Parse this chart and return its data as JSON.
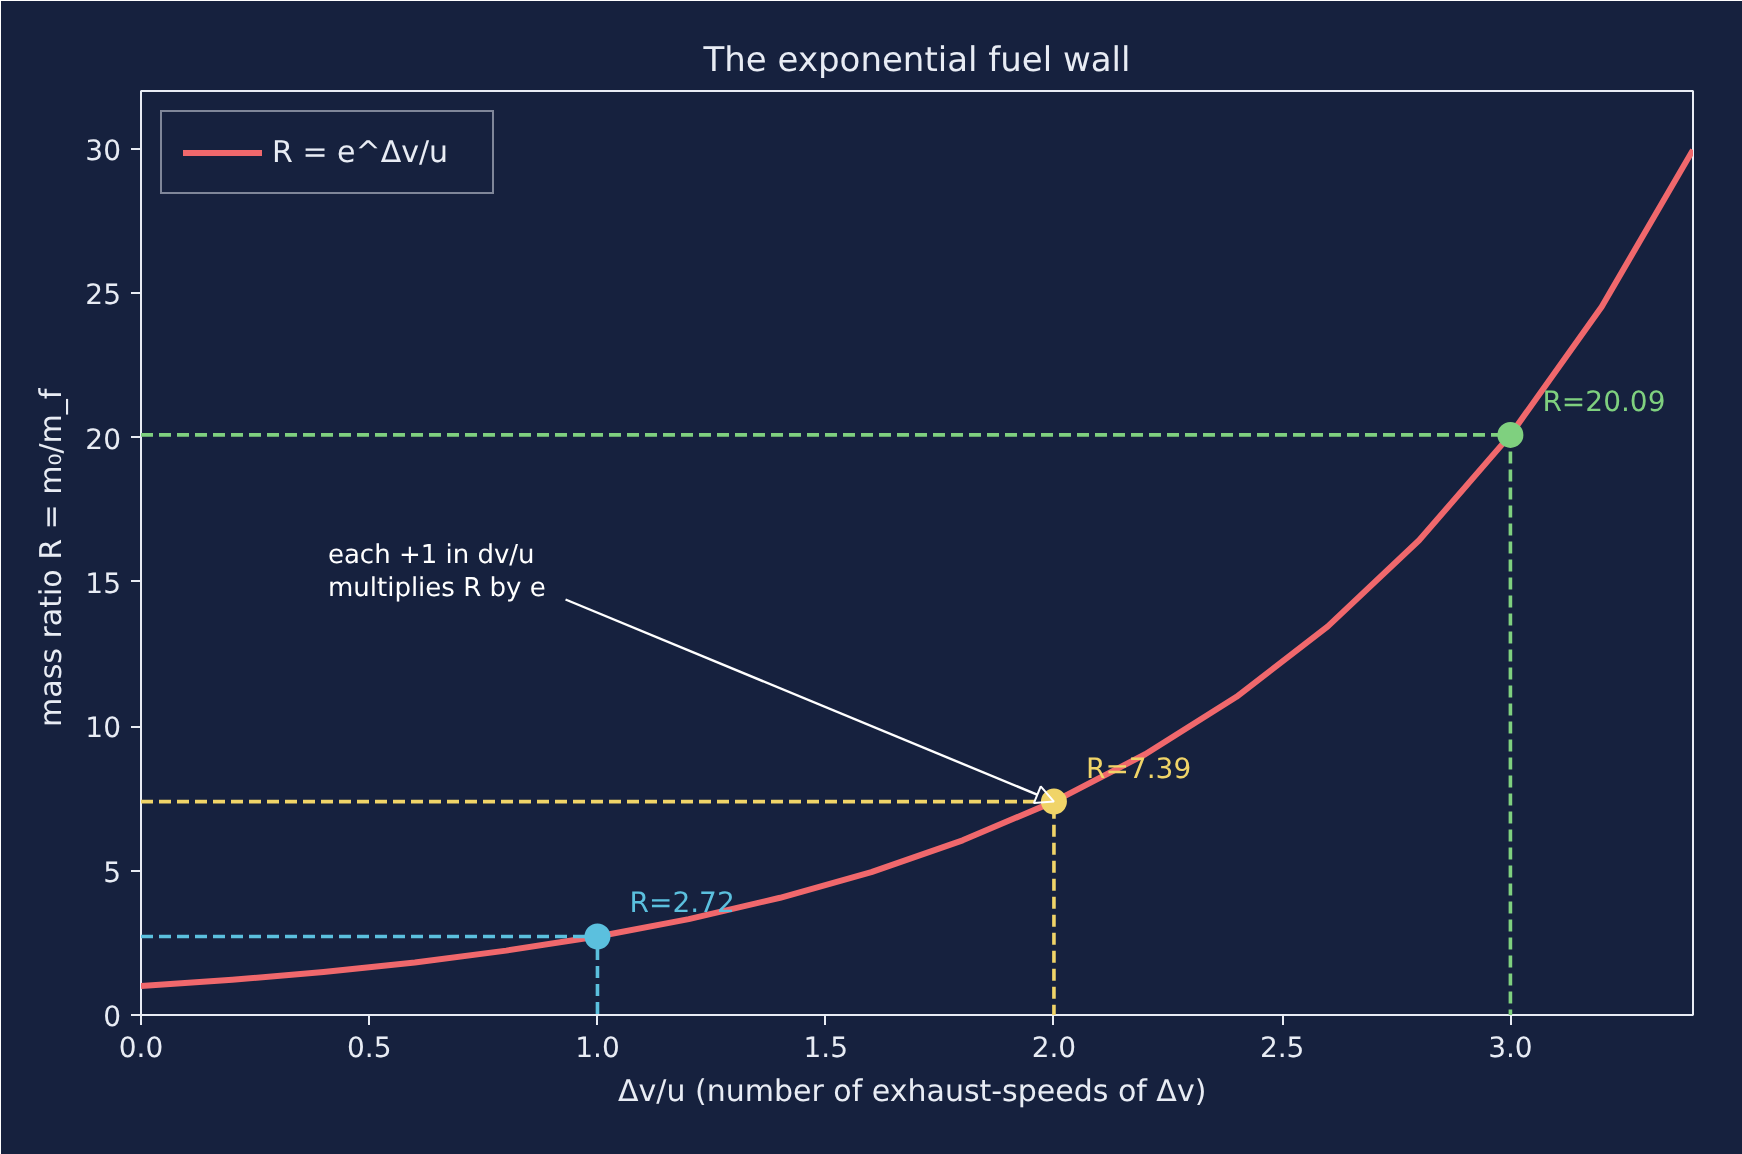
{
  "chart_data": {
    "type": "line",
    "title": "The exponential fuel wall",
    "xlabel": "Δv/u  (number of exhaust-speeds of Δv)",
    "ylabel": "mass ratio  R = m₀/m_f",
    "x": [
      0,
      0.2,
      0.4,
      0.6,
      0.8,
      1.0,
      1.2,
      1.4,
      1.6,
      1.8,
      2.0,
      2.2,
      2.4,
      2.6,
      2.8,
      3.0,
      3.2,
      3.4
    ],
    "series": [
      {
        "name": "R = e^Δv/u",
        "color": "#f0686c",
        "line_style": "solid",
        "values": [
          1.0,
          1.22,
          1.49,
          1.82,
          2.23,
          2.72,
          3.32,
          4.06,
          4.95,
          6.05,
          7.39,
          9.03,
          11.02,
          13.46,
          16.44,
          20.09,
          24.53,
          29.96
        ]
      },
      {
        "color": "#5bc0de",
        "line_style": "dashed",
        "x": [
          0,
          1.0,
          1.0
        ],
        "values": [
          2.72,
          2.72,
          0
        ]
      },
      {
        "color": "#f0d468",
        "line_style": "dashed",
        "x": [
          0,
          2.0,
          2.0
        ],
        "values": [
          7.39,
          7.39,
          0
        ]
      },
      {
        "color": "#7fd07f",
        "line_style": "dashed",
        "x": [
          0,
          3.0,
          3.0
        ],
        "values": [
          20.09,
          20.09,
          0
        ]
      },
      {
        "type": "scatter",
        "marker": "circle",
        "colors": [
          "#5bc0de",
          "#f0d468",
          "#7fd07f"
        ],
        "x": [
          1.0,
          2.0,
          3.0
        ],
        "values": [
          2.72,
          7.39,
          20.09
        ],
        "value_labels": [
          "R=2.72",
          "R=7.39",
          "R=20.09"
        ]
      }
    ],
    "annotations": [
      {
        "text": "each +1 in dv/u\nmultiplies R by e",
        "x": 2.0,
        "y": 7.39
      }
    ],
    "xlim": [
      0,
      3.4
    ],
    "ylim": [
      0,
      32
    ],
    "xticks": [
      {
        "value": 0,
        "label": "0.0"
      },
      {
        "value": 0.5,
        "label": "0.5"
      },
      {
        "value": 1,
        "label": "1.0"
      },
      {
        "value": 1.5,
        "label": "1.5"
      },
      {
        "value": 2,
        "label": "2.0"
      },
      {
        "value": 2.5,
        "label": "2.5"
      },
      {
        "value": 3,
        "label": "3.0"
      }
    ],
    "yticks": [
      0,
      5,
      10,
      15,
      20,
      25,
      30
    ],
    "legend": "top left"
  }
}
